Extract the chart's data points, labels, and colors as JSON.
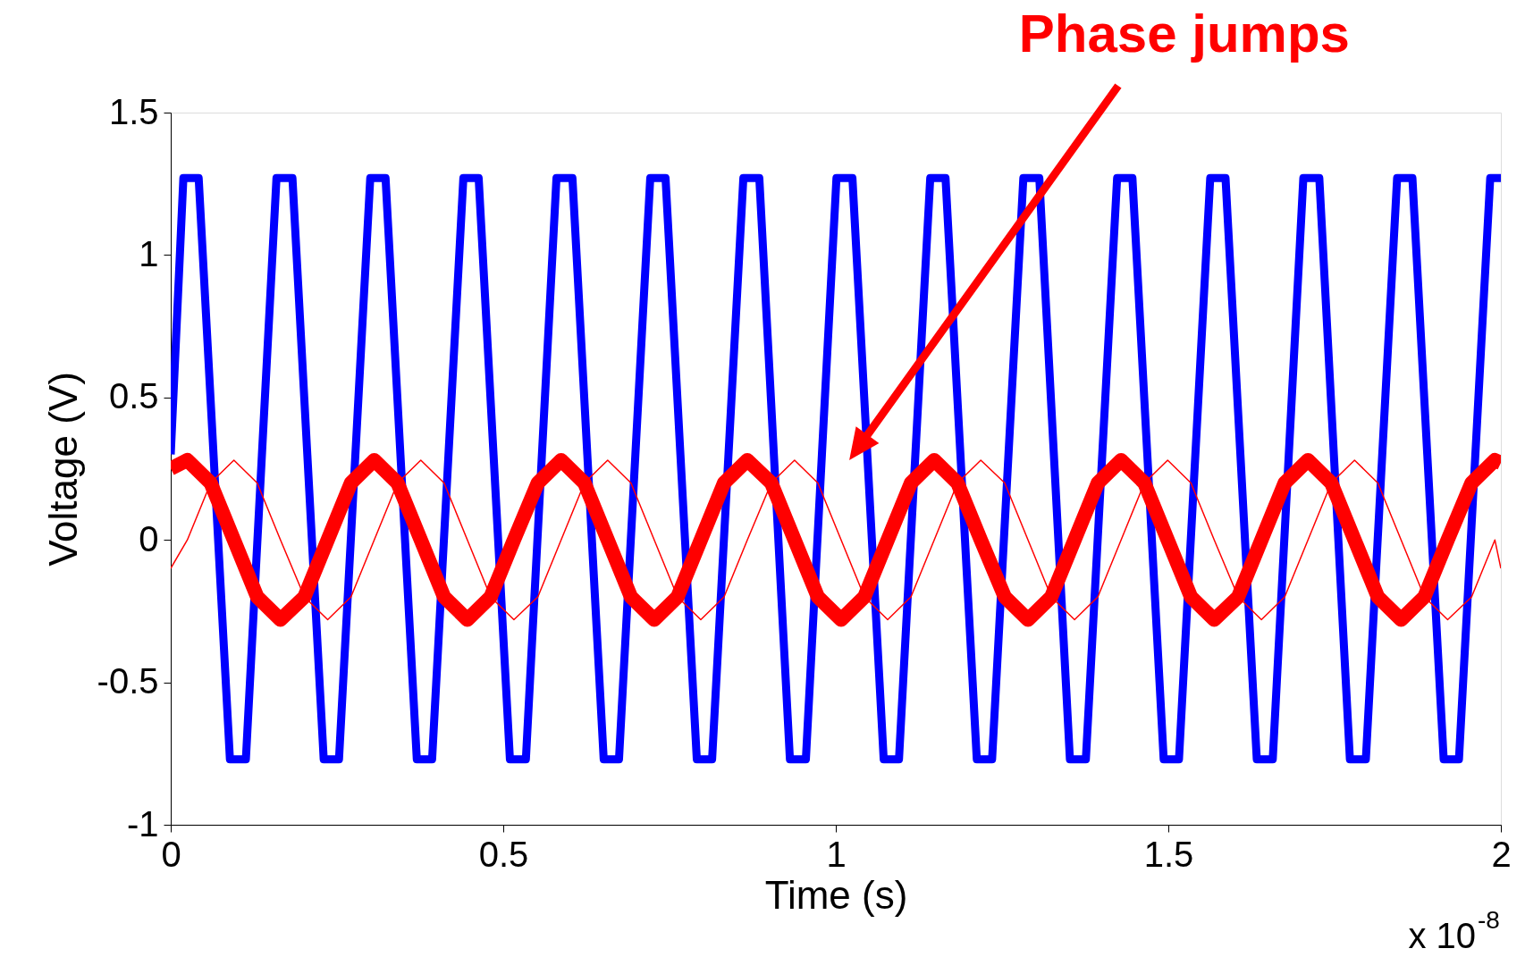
{
  "chart_data": {
    "type": "line",
    "xlabel": "Time (s)",
    "ylabel": "Voltage (V)",
    "xlim": [
      0,
      2
    ],
    "xticks": [
      0,
      0.5,
      1,
      1.5,
      2
    ],
    "ylim": [
      -1,
      1.5
    ],
    "yticks": [
      -1,
      -0.5,
      0,
      0.5,
      1,
      1.5
    ],
    "grid": false,
    "marker": "none",
    "line_style": "solid",
    "annotations": [
      "Phase jumps",
      "x 10$^{-8}$"
    ],
    "series": [
      {
        "color": "#0000ff",
        "x": [
          0,
          0.019,
          0.042,
          0.089,
          0.113,
          0.159,
          0.183,
          0.23,
          0.253,
          0.3,
          0.323,
          0.37,
          0.393,
          0.44,
          0.463,
          0.51,
          0.534,
          0.58,
          0.604,
          0.651,
          0.674,
          0.721,
          0.744,
          0.791,
          0.814,
          0.861,
          0.885,
          0.931,
          0.955,
          1.001,
          1.025,
          1.072,
          1.095,
          1.142,
          1.165,
          1.212,
          1.235,
          1.282,
          1.306,
          1.352,
          1.376,
          1.423,
          1.446,
          1.493,
          1.516,
          1.563,
          1.586,
          1.633,
          1.657,
          1.703,
          1.727,
          1.773,
          1.797,
          1.844,
          1.867,
          1.914,
          1.937,
          1.984,
          2.0
        ],
        "values": [
          0.3,
          1.27,
          1.27,
          -0.77,
          -0.77,
          1.27,
          1.27,
          -0.77,
          -0.77,
          1.27,
          1.27,
          -0.77,
          -0.77,
          1.27,
          1.27,
          -0.77,
          -0.77,
          1.27,
          1.27,
          -0.77,
          -0.77,
          1.27,
          1.27,
          -0.77,
          -0.77,
          1.27,
          1.27,
          -0.77,
          -0.77,
          1.27,
          1.27,
          -0.77,
          -0.77,
          1.27,
          1.27,
          -0.77,
          -0.77,
          1.27,
          1.27,
          -0.77,
          -0.77,
          1.27,
          1.27,
          -0.77,
          -0.77,
          1.27,
          1.27,
          -0.77,
          -0.77,
          1.27,
          1.27,
          -0.77,
          -0.77,
          1.27,
          1.27,
          -0.77,
          -0.77,
          1.27,
          1.27
        ]
      },
      {
        "color": "#ff0000",
        "x": [
          0,
          0.025,
          0.06,
          0.095,
          0.13,
          0.165,
          0.201,
          0.236,
          0.271,
          0.306,
          0.341,
          0.376,
          0.411,
          0.446,
          0.481,
          0.516,
          0.552,
          0.587,
          0.622,
          0.657,
          0.692,
          0.727,
          0.762,
          0.797,
          0.832,
          0.867,
          0.903,
          0.938,
          0.973,
          1.008,
          1.043,
          1.078,
          1.113,
          1.148,
          1.183,
          1.218,
          1.254,
          1.289,
          1.324,
          1.359,
          1.394,
          1.429,
          1.464,
          1.499,
          1.534,
          1.569,
          1.605,
          1.64,
          1.675,
          1.71,
          1.745,
          1.78,
          1.815,
          1.85,
          1.885,
          1.92,
          1.956,
          1.991,
          2.0
        ],
        "values": [
          0.25,
          0.28,
          0.2,
          0,
          -0.2,
          -0.28,
          -0.2,
          0,
          0.2,
          0.28,
          0.2,
          0,
          -0.2,
          -0.28,
          -0.2,
          0,
          0.2,
          0.28,
          0.2,
          0,
          -0.2,
          -0.28,
          -0.2,
          0,
          0.2,
          0.28,
          0.2,
          0,
          -0.2,
          -0.28,
          -0.2,
          0,
          0.2,
          0.28,
          0.2,
          0,
          -0.2,
          -0.28,
          -0.2,
          0,
          0.2,
          0.28,
          0.2,
          0,
          -0.2,
          -0.28,
          -0.2,
          0,
          0.2,
          0.28,
          0.2,
          0,
          -0.2,
          -0.28,
          -0.2,
          0,
          0.2,
          0.28,
          0.27
        ]
      },
      {
        "color": "#ff0000",
        "x": [
          0,
          0.025,
          0.06,
          0.095,
          0.13,
          0.165,
          0.201,
          0.236,
          0.271,
          0.306,
          0.341,
          0.376,
          0.411,
          0.446,
          0.481,
          0.516,
          0.552,
          0.587,
          0.622,
          0.657,
          0.692,
          0.727,
          0.762,
          0.797,
          0.832,
          0.867,
          0.903,
          0.938,
          0.973,
          1.008,
          1.043,
          1.078,
          1.113,
          1.148,
          1.183,
          1.218,
          1.254,
          1.289,
          1.324,
          1.359,
          1.394,
          1.429,
          1.464,
          1.499,
          1.534,
          1.569,
          1.605,
          1.64,
          1.675,
          1.71,
          1.745,
          1.78,
          1.815,
          1.85,
          1.885,
          1.92,
          1.956,
          1.991,
          2.0
        ],
        "values": [
          -0.1,
          0,
          0.2,
          0.28,
          0.2,
          0,
          -0.2,
          -0.28,
          -0.2,
          0,
          0.2,
          0.28,
          0.2,
          0,
          -0.2,
          -0.28,
          -0.2,
          0,
          0.2,
          0.28,
          0.2,
          0,
          -0.2,
          -0.28,
          -0.2,
          0,
          0.2,
          0.28,
          0.2,
          0,
          -0.2,
          -0.28,
          -0.2,
          0,
          0.2,
          0.28,
          0.2,
          0,
          -0.2,
          -0.28,
          -0.2,
          0,
          0.2,
          0.28,
          0.2,
          0,
          -0.2,
          -0.28,
          -0.2,
          0,
          0.2,
          0.28,
          0.2,
          0,
          -0.2,
          -0.28,
          -0.2,
          0,
          -0.1
        ]
      }
    ]
  }
}
